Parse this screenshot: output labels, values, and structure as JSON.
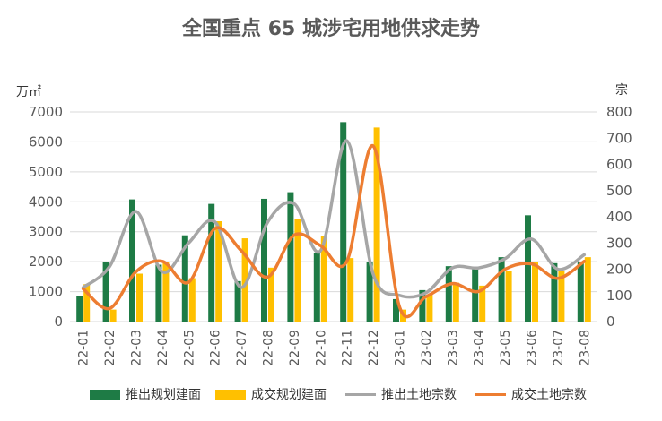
{
  "title": "全国重点 65 城涉宅用地供求走势",
  "left_unit": "万㎡",
  "right_unit": "宗",
  "legend": {
    "launch_area": "推出规划建面",
    "deal_area": "成交规划建面",
    "launch_count": "推出土地宗数",
    "deal_count": "成交土地宗数"
  },
  "colors": {
    "launch_area": "#1e7b45",
    "deal_area": "#ffc000",
    "launch_count": "#a6a6a6",
    "deal_count": "#ed7d31",
    "grid": "#d9d9d9"
  },
  "chart_data": {
    "type": "bar",
    "title": "全国重点 65 城涉宅用地供求走势",
    "categories": [
      "22-01",
      "22-02",
      "22-03",
      "22-04",
      "22-05",
      "22-06",
      "22-07",
      "22-08",
      "22-09",
      "22-10",
      "22-11",
      "22-12",
      "23-01",
      "23-02",
      "23-03",
      "23-04",
      "23-05",
      "23-06",
      "23-07",
      "23-08"
    ],
    "y_left": {
      "label": "万㎡",
      "range": [
        0,
        7000
      ],
      "ticks": [
        0,
        1000,
        2000,
        3000,
        4000,
        5000,
        6000,
        7000
      ]
    },
    "y_right": {
      "label": "宗",
      "range": [
        0,
        800
      ],
      "ticks": [
        0,
        100,
        200,
        300,
        400,
        500,
        600,
        700,
        800
      ]
    },
    "grid": true,
    "legend_position": "bottom",
    "series": [
      {
        "name": "推出规划建面",
        "type": "bar",
        "axis": "left",
        "values": [
          850,
          2000,
          4080,
          1900,
          2880,
          3930,
          1350,
          4100,
          4320,
          2300,
          6660,
          2000,
          750,
          1050,
          1850,
          1800,
          2150,
          3550,
          1950,
          2000
        ]
      },
      {
        "name": "成交规划建面",
        "type": "bar",
        "axis": "left",
        "values": [
          1250,
          400,
          1600,
          2000,
          1450,
          3350,
          2780,
          1800,
          3420,
          2870,
          2120,
          6480,
          400,
          900,
          1300,
          1200,
          1700,
          2000,
          1700,
          2150
        ]
      },
      {
        "name": "推出土地宗数",
        "type": "line",
        "axis": "right",
        "values": [
          130,
          210,
          420,
          190,
          300,
          380,
          130,
          380,
          450,
          270,
          690,
          180,
          100,
          110,
          205,
          205,
          240,
          315,
          200,
          255
        ]
      },
      {
        "name": "成交土地宗数",
        "type": "line",
        "axis": "right",
        "values": [
          125,
          50,
          190,
          230,
          150,
          355,
          270,
          170,
          330,
          290,
          230,
          670,
          55,
          95,
          145,
          115,
          200,
          220,
          165,
          230
        ]
      }
    ]
  }
}
